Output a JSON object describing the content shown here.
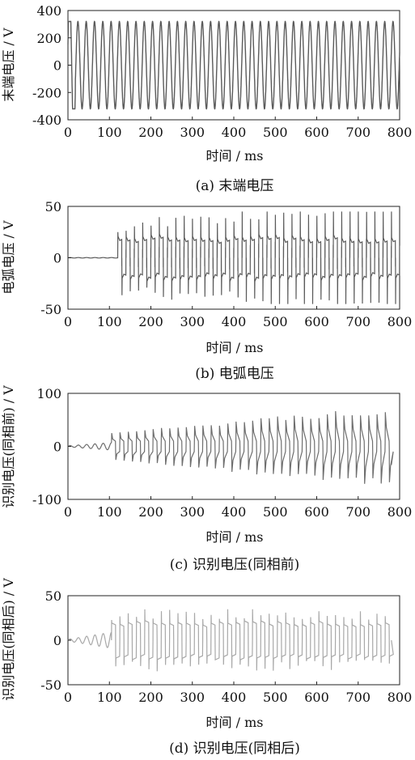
{
  "chart_data": [
    {
      "type": "line",
      "caption": "(a)  末端电压",
      "xlabel": "时间 / ms",
      "ylabel": "末端电压 / V",
      "xlim": [
        0,
        800
      ],
      "ylim": [
        -400,
        400
      ],
      "xticks": [
        0,
        100,
        200,
        300,
        400,
        500,
        600,
        700,
        800
      ],
      "yticks": [
        -400,
        -200,
        0,
        200,
        400
      ],
      "grid": false,
      "series": [
        {
          "color": "#5a5a5a",
          "description": "50 Hz sinusoid, amplitude ~320 V, 0–800 ms (clipped flat to ±320 near 0–20 ms)",
          "frequency_hz": 50,
          "amplitude": 320
        }
      ]
    },
    {
      "type": "line",
      "caption": "(b)  电弧电压",
      "xlabel": "时间 / ms",
      "ylabel": "电弧电压 / V",
      "xlim": [
        0,
        800
      ],
      "ylim": [
        -50,
        50
      ],
      "xticks": [
        0,
        100,
        200,
        300,
        400,
        500,
        600,
        700,
        800
      ],
      "yticks": [
        -50,
        0,
        50
      ],
      "grid": false,
      "series": [
        {
          "color": "#5a5a5a",
          "description": "≈0 V until ~120 ms, then square-ish arc voltage ±15–20 V with spikes to ±30–45 V",
          "arc_start_ms": 120,
          "plateau": [
            15,
            20
          ],
          "spike_max": 45
        }
      ]
    },
    {
      "type": "line",
      "caption": "(c)  识别电压(同相前)",
      "xlabel": "时间 / ms",
      "ylabel": "识别电压(同相前) / V",
      "xlim": [
        0,
        800
      ],
      "ylim": [
        -100,
        100
      ],
      "xticks": [
        0,
        100,
        200,
        300,
        400,
        500,
        600,
        700,
        800
      ],
      "yticks": [
        -100,
        0,
        100
      ],
      "grid": false,
      "series": [
        {
          "color": "#6e6e6e",
          "description": "small oscillation 0–100 ms, then sawtooth-like pulses growing from ±25 V to ±70 V, ends ~780 ms",
          "arc_start_ms": 105,
          "peak_start": 25,
          "peak_end": 70,
          "end_ms": 780
        }
      ]
    },
    {
      "type": "line",
      "caption": "(d)  识别电压(同相后)",
      "xlabel": "时间 / ms",
      "ylabel": "识别电压(同相后) / V",
      "xlim": [
        0,
        800
      ],
      "ylim": [
        -50,
        50
      ],
      "xticks": [
        0,
        100,
        200,
        300,
        400,
        500,
        600,
        700,
        800
      ],
      "yticks": [
        -50,
        0,
        50
      ],
      "grid": false,
      "series": [
        {
          "color": "#a8a8a8",
          "description": "small oscillation 0–100 ms, then square-like ±15–20 V with spikes to ±25–35 V, ends ~780 ms",
          "arc_start_ms": 105,
          "plateau": [
            15,
            20
          ],
          "spike_max": 35,
          "end_ms": 780
        }
      ]
    }
  ]
}
